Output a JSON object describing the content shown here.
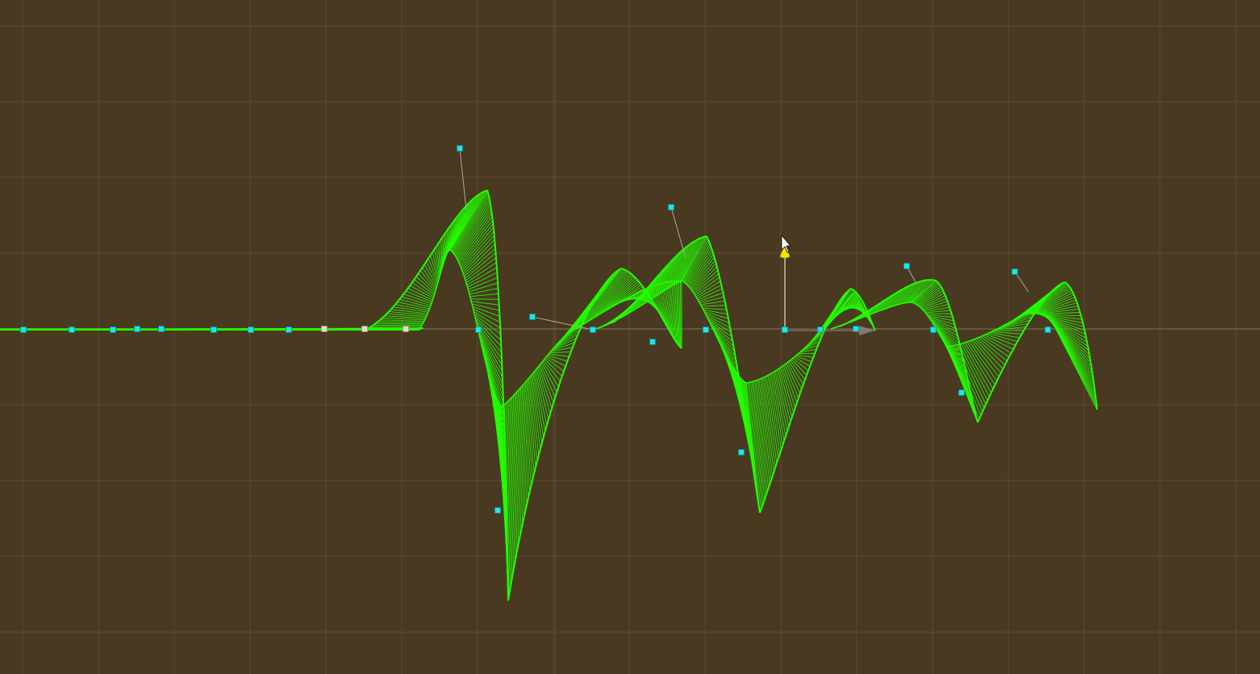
{
  "scene": {
    "view": "2d-scene-view",
    "background_color": "#4a3921",
    "grid_color": "#5a4a32",
    "axis_color": "#7a6a52",
    "grid": true
  },
  "curve": {
    "color": "#22ff00",
    "style": "extruded-ribbon"
  },
  "control_points": {
    "selected_color": "#1ee6e6",
    "unselected_color": "#e0dcc8",
    "handle_line_color": "#b0a898"
  },
  "gizmo": {
    "arrow_color": "#f2e600",
    "line_color": "#e8e4d0",
    "x_arrow_color": "#8a8a8a"
  },
  "cursor": {
    "icon": "mouse-pointer-icon",
    "color": "#ffffff"
  }
}
